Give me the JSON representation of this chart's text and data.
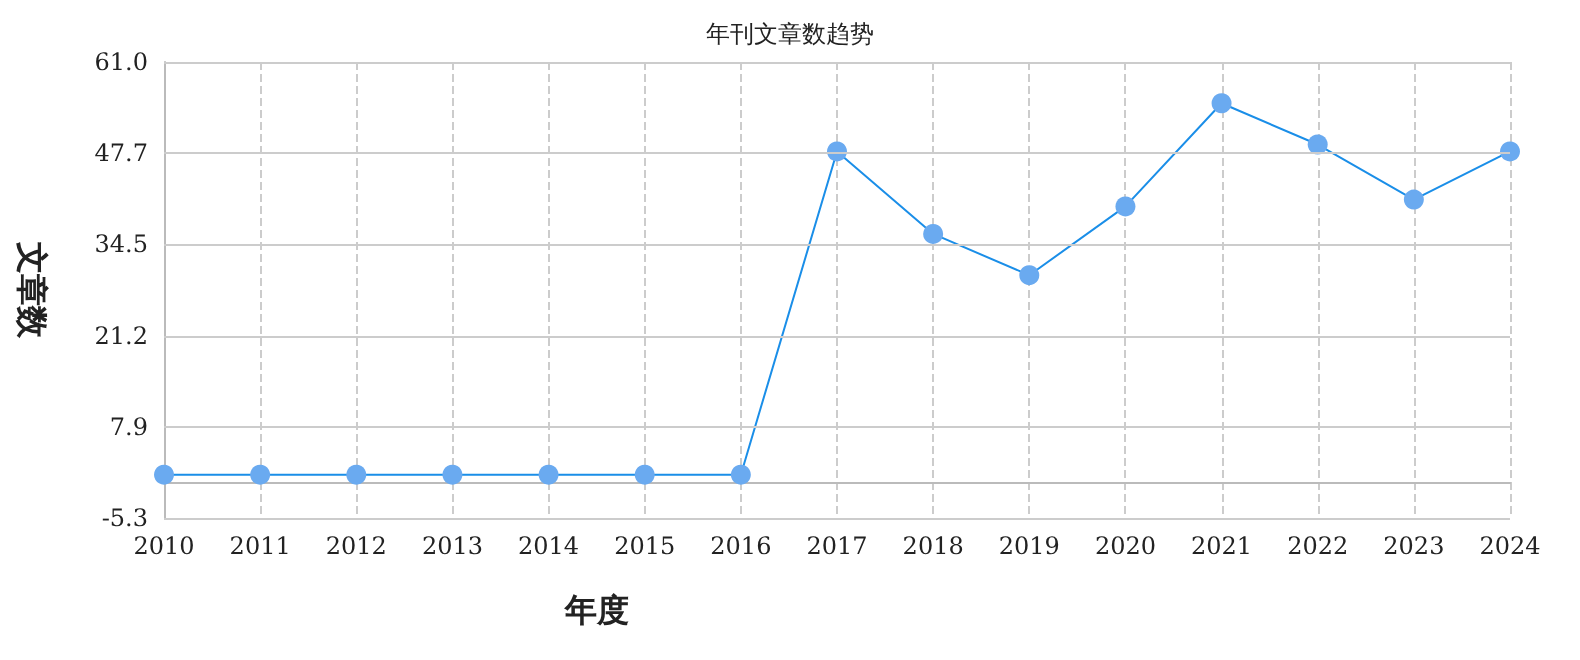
{
  "chart_data": {
    "type": "line",
    "title": "年刊文章数趋势",
    "xlabel": "年度",
    "ylabel": "文章数",
    "categories": [
      "2010",
      "2011",
      "2012",
      "2013",
      "2014",
      "2015",
      "2016",
      "2017",
      "2018",
      "2019",
      "2020",
      "2021",
      "2022",
      "2023",
      "2024"
    ],
    "series": [
      {
        "color": "#1a8ee8",
        "values": [
          1,
          1,
          1,
          1,
          1,
          1,
          1,
          48,
          36,
          30,
          40,
          55,
          49,
          41,
          48
        ]
      }
    ],
    "ylim": [
      -5.3,
      61
    ],
    "yticks": [
      -5.3,
      7.9,
      21.2,
      34.5,
      47.7,
      {
        "value": 61,
        "label": "61.0"
      }
    ],
    "grid": true,
    "marker": "circle",
    "line_style": "solid"
  }
}
